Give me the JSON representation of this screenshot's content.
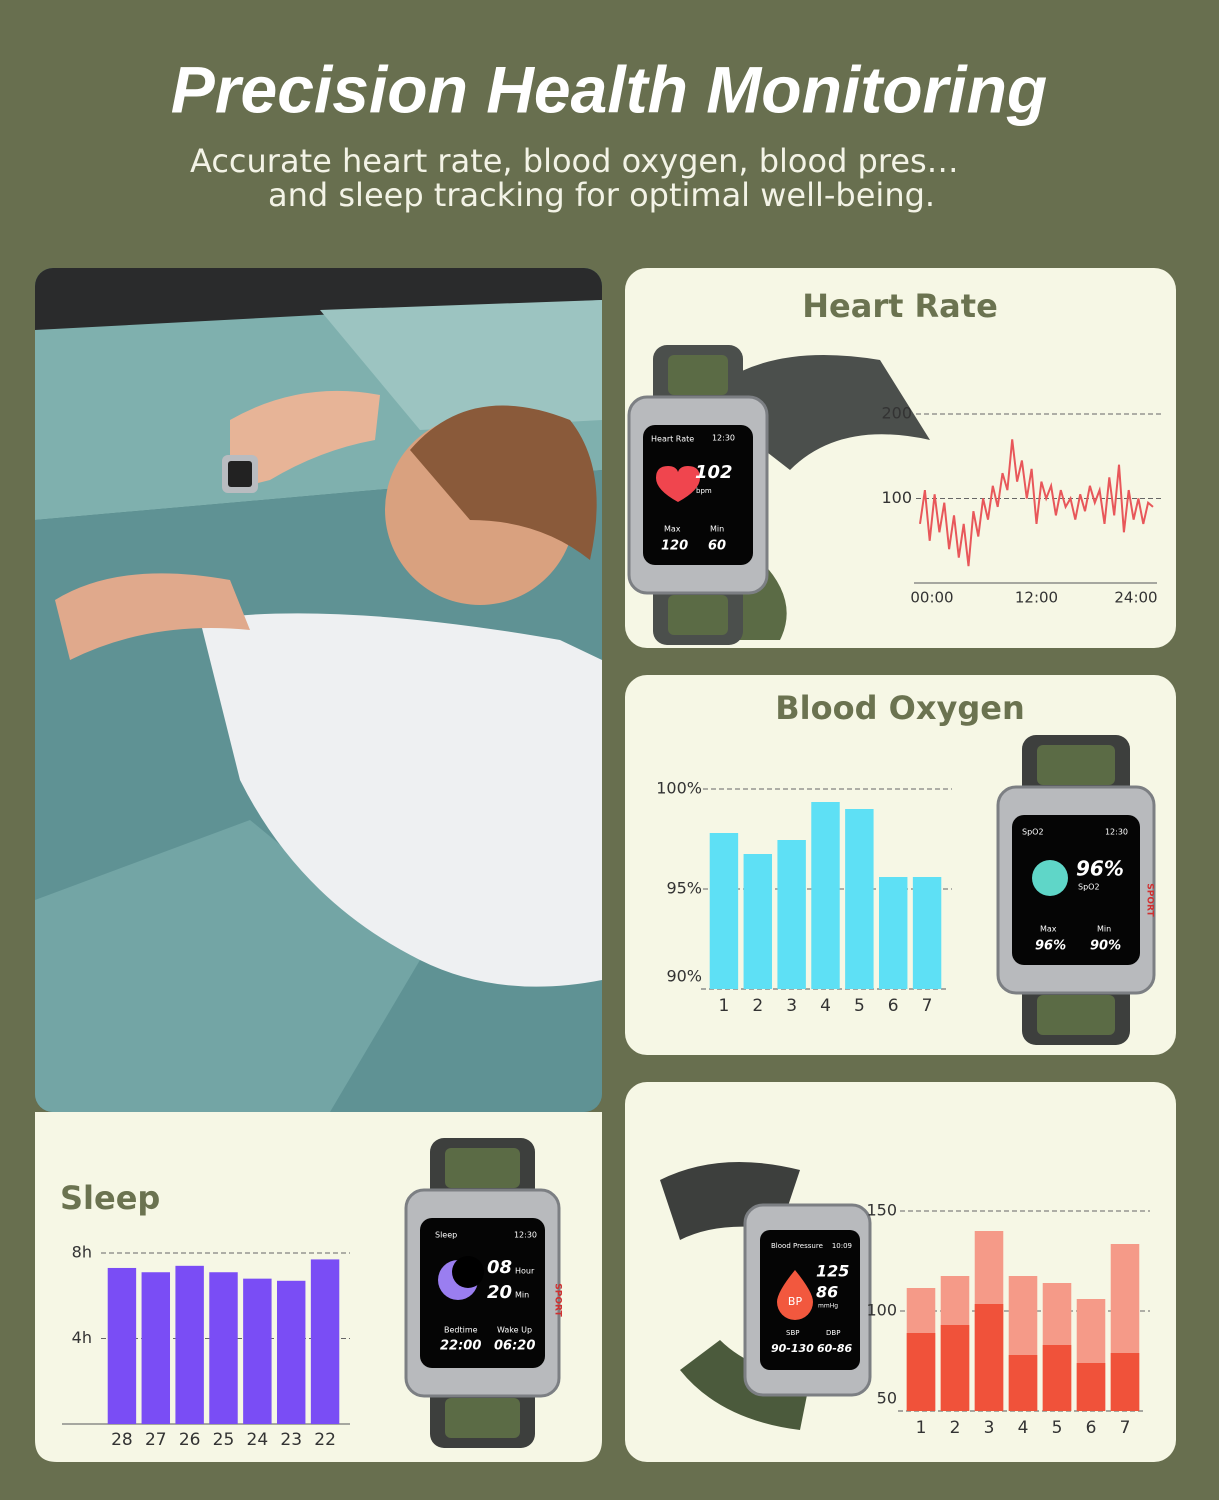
{
  "header": {
    "title": "Precision Health Monitoring",
    "subtitle": [
      "Accurate heart rate, blood oxygen, blood pres…",
      "and sleep tracking for optimal well-being."
    ]
  },
  "chart_data": [
    {
      "type": "line",
      "title": "Heart Rate",
      "color": "#e8575a",
      "x": [
        0,
        0.5,
        1,
        1.5,
        2,
        2.5,
        3,
        3.5,
        4,
        4.5,
        5,
        5.5,
        6,
        6.5,
        7,
        7.5,
        8,
        8.5,
        9,
        9.5,
        10,
        10.5,
        11,
        11.5,
        12,
        12.5,
        13,
        13.5,
        14,
        14.5,
        15,
        15.5,
        16,
        16.5,
        17,
        17.5,
        18,
        18.5,
        19,
        19.5,
        20,
        20.5,
        21,
        21.5,
        22,
        22.5,
        23,
        23.5,
        24
      ],
      "values": [
        70,
        110,
        50,
        105,
        60,
        95,
        40,
        80,
        30,
        70,
        20,
        85,
        55,
        100,
        75,
        115,
        90,
        130,
        110,
        170,
        120,
        145,
        100,
        135,
        70,
        120,
        100,
        115,
        80,
        110,
        90,
        100,
        75,
        105,
        85,
        115,
        95,
        110,
        70,
        125,
        80,
        140,
        60,
        110,
        75,
        100,
        70,
        95,
        90
      ],
      "xlim": [
        0,
        24
      ],
      "xticks": [
        {
          "value": 0,
          "label": "00:00"
        },
        {
          "value": 12,
          "label": "12:00"
        },
        {
          "value": 24,
          "label": "24:00"
        }
      ],
      "ylim": [
        0,
        200
      ],
      "yticks": [
        100,
        200
      ],
      "grid": true
    },
    {
      "type": "bar",
      "title": "Blood Oxygen",
      "color": "#5ee0f5",
      "categories": [
        "1",
        "2",
        "3",
        "4",
        "5",
        "6",
        "7"
      ],
      "values": [
        97.8,
        96.75,
        97.45,
        99.35,
        99,
        95.6,
        95.6
      ],
      "ylim": [
        90,
        100
      ],
      "yticks": [
        {
          "value": 90,
          "label": "90%"
        },
        {
          "value": 95,
          "label": "95%"
        },
        {
          "value": 100,
          "label": "100%"
        }
      ],
      "grid": true
    },
    {
      "type": "bar",
      "title": "Sleep",
      "color": "#7a4df5",
      "categories": [
        "28",
        "27",
        "26",
        "25",
        "24",
        "23",
        "22"
      ],
      "values": [
        7.3,
        7.1,
        7.4,
        7.1,
        6.8,
        6.7,
        7.7
      ],
      "ylim": [
        0,
        8
      ],
      "yticks": [
        {
          "value": 4,
          "label": "4h"
        },
        {
          "value": 8,
          "label": "8h"
        }
      ],
      "grid": true
    },
    {
      "type": "bar",
      "categories": [
        "1",
        "2",
        "3",
        "4",
        "5",
        "6",
        "7"
      ],
      "series": [
        {
          "color": "#f59a88",
          "values": [
            111.5,
            117.5,
            140,
            117.5,
            114,
            106,
            133.5
          ]
        },
        {
          "color": "#f0523a",
          "values": [
            89,
            93,
            103.5,
            78,
            83,
            74,
            79
          ]
        }
      ],
      "ylim": [
        50,
        150
      ],
      "yticks": [
        50,
        100,
        150
      ],
      "grid": true
    }
  ],
  "watches": {
    "heart_rate": {
      "title": "Heart Rate",
      "time": "12:30",
      "value": "102",
      "unit": "bpm",
      "max_label": "Max",
      "min_label": "Min",
      "max": "120",
      "min": "60"
    },
    "blood_oxygen": {
      "title": "SpO2",
      "time": "12:30",
      "value": "96%",
      "unit": "SpO2",
      "max_label": "Max",
      "min_label": "Min",
      "max": "96%",
      "min": "90%",
      "side": "SPORT"
    },
    "sleep": {
      "title": "Sleep",
      "time": "12:30",
      "hours": "08",
      "hours_unit": "Hour",
      "minutes": "20",
      "minutes_unit": "Min",
      "bedtime_label": "Bedtime",
      "wake_label": "Wake Up",
      "bedtime": "22:00",
      "wake": "06:20",
      "side": "SPORT"
    },
    "blood_pressure": {
      "title": "Blood Pressure",
      "time": "10:09",
      "icon": "BP",
      "sbp": "125",
      "dbp": "86",
      "unit": "mmHg",
      "sbp_label": "SBP",
      "dbp_label": "DBP",
      "sbp_range": "90-130",
      "dbp_range": "60-86"
    }
  }
}
